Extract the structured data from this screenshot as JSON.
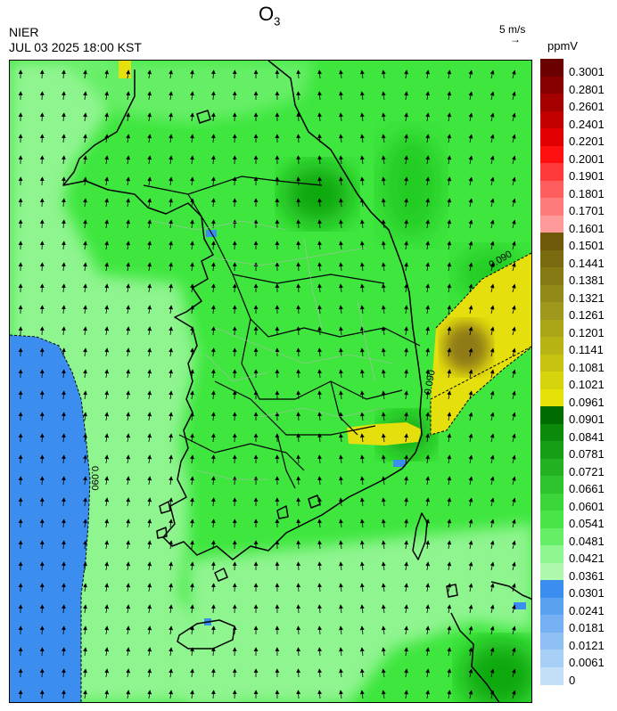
{
  "header": {
    "org": "NIER",
    "datetime": "JUL 03 2025 18:00 KST",
    "title_main": "O",
    "title_sub": "3",
    "wind_ref_label": "5 m/s",
    "wind_ref_arrow": "→",
    "unit": "ppmV"
  },
  "map": {
    "contour_label": "0.090",
    "colors": {
      "sea_low": "#3b8ef0",
      "light_green": "#8ff58f",
      "mid_green": "#3ee63e",
      "green": "#22cc22",
      "dark_green": "#10a810",
      "yellow": "#e5df0e",
      "olive": "#8f7a14",
      "coast": "#000000",
      "boundary": "#b0b0b0"
    }
  },
  "legend": {
    "levels": [
      "0.3001",
      "0.2801",
      "0.2601",
      "0.2401",
      "0.2201",
      "0.2001",
      "0.1901",
      "0.1801",
      "0.1701",
      "0.1601",
      "0.1501",
      "0.1441",
      "0.1381",
      "0.1321",
      "0.1261",
      "0.1201",
      "0.1141",
      "0.1081",
      "0.1021",
      "0.0961",
      "0.0901",
      "0.0841",
      "0.0781",
      "0.0721",
      "0.0661",
      "0.0601",
      "0.0541",
      "0.0481",
      "0.0421",
      "0.0361",
      "0.0301",
      "0.0241",
      "0.0181",
      "0.0121",
      "0.0061",
      "0"
    ],
    "colors": [
      "#6a0000",
      "#870000",
      "#a50000",
      "#c30000",
      "#e10000",
      "#ff1010",
      "#ff3a3a",
      "#ff5e5e",
      "#ff7c7c",
      "#ff9a9a",
      "#6e5a0a",
      "#7a6a10",
      "#857a14",
      "#928a18",
      "#9e981c",
      "#aaa618",
      "#b8b414",
      "#c6c410",
      "#d6d40c",
      "#e5e208",
      "#006b00",
      "#0c8a0c",
      "#179e17",
      "#22b222",
      "#2ec42e",
      "#3ad63a",
      "#48e448",
      "#66ef66",
      "#8ff78f",
      "#aef9ae",
      "#3b8ef0",
      "#5aa2f0",
      "#74b0f2",
      "#8ec0f4",
      "#a8d0f6",
      "#c4e0f8"
    ]
  }
}
